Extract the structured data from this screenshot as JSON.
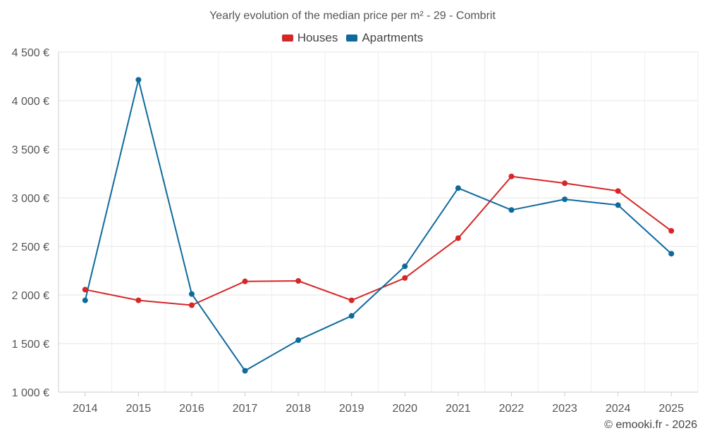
{
  "chart_data": {
    "type": "line",
    "title": "Yearly evolution of the median price per m² - 29 - Combrit",
    "categories": [
      "2014",
      "2015",
      "2016",
      "2017",
      "2018",
      "2019",
      "2020",
      "2021",
      "2022",
      "2023",
      "2024",
      "2025"
    ],
    "series": [
      {
        "name": "Houses",
        "color": "#d62728",
        "values": [
          2055,
          1945,
          1895,
          2140,
          2145,
          1945,
          2175,
          2585,
          3220,
          3150,
          3070,
          2660
        ]
      },
      {
        "name": "Apartments",
        "color": "#0f6a9c",
        "values": [
          1945,
          4215,
          2010,
          1220,
          1535,
          1785,
          2295,
          3100,
          2875,
          2985,
          2925,
          2425
        ]
      }
    ],
    "yticks": [
      "1 000 €",
      "1 500 €",
      "2 000 €",
      "2 500 €",
      "3 000 €",
      "3 500 €",
      "4 000 €",
      "4 500 €"
    ],
    "ylim": [
      1000,
      4500
    ],
    "xlabel": "",
    "ylabel": "",
    "legend_position": "top-center",
    "grid": true
  },
  "credit": "© emooki.fr - 2026"
}
